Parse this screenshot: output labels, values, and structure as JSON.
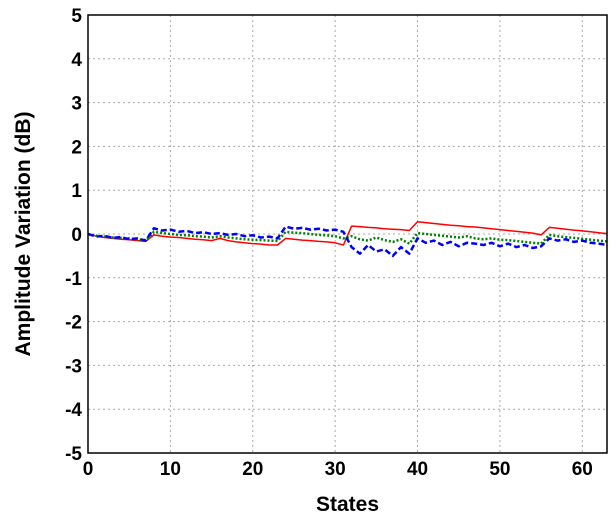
{
  "chart_data": {
    "type": "line",
    "title": "",
    "xlabel": "States",
    "ylabel": "Amplitude Variation (dB)",
    "xlim": [
      0,
      63
    ],
    "ylim": [
      -5,
      5
    ],
    "xticks": [
      0,
      10,
      20,
      30,
      40,
      50,
      60
    ],
    "yticks": [
      5,
      4,
      3,
      2,
      1,
      0,
      -1,
      -2,
      -3,
      -4,
      -5
    ],
    "grid": true,
    "x": [
      0,
      1,
      2,
      3,
      4,
      5,
      6,
      7,
      8,
      9,
      10,
      11,
      12,
      13,
      14,
      15,
      16,
      17,
      18,
      19,
      20,
      21,
      22,
      23,
      24,
      25,
      26,
      27,
      28,
      29,
      30,
      31,
      32,
      33,
      34,
      35,
      36,
      37,
      38,
      39,
      40,
      41,
      42,
      43,
      44,
      45,
      46,
      47,
      48,
      49,
      50,
      51,
      52,
      53,
      54,
      55,
      56,
      57,
      58,
      59,
      60,
      61,
      62,
      63
    ],
    "series": [
      {
        "color": "#ff0000",
        "dash": "solid",
        "values": [
          0.0,
          -0.05,
          -0.08,
          -0.1,
          -0.12,
          -0.13,
          -0.15,
          -0.17,
          -0.02,
          -0.05,
          -0.07,
          -0.08,
          -0.1,
          -0.12,
          -0.13,
          -0.15,
          -0.1,
          -0.15,
          -0.18,
          -0.2,
          -0.22,
          -0.23,
          -0.25,
          -0.25,
          -0.1,
          -0.12,
          -0.14,
          -0.15,
          -0.17,
          -0.18,
          -0.2,
          -0.25,
          0.18,
          0.17,
          0.15,
          0.14,
          0.12,
          0.11,
          0.1,
          0.08,
          0.28,
          0.26,
          0.24,
          0.22,
          0.2,
          0.19,
          0.17,
          0.16,
          0.14,
          0.12,
          0.1,
          0.08,
          0.06,
          0.04,
          0.02,
          -0.02,
          0.15,
          0.13,
          0.11,
          0.09,
          0.07,
          0.05,
          0.03,
          0.01
        ]
      },
      {
        "color": "#008000",
        "dash": "dotted",
        "values": [
          0.0,
          -0.04,
          -0.06,
          -0.08,
          -0.09,
          -0.1,
          -0.12,
          -0.14,
          0.05,
          0.02,
          0.0,
          -0.02,
          -0.03,
          -0.05,
          -0.06,
          -0.08,
          -0.05,
          -0.08,
          -0.1,
          -0.12,
          -0.13,
          -0.14,
          -0.15,
          -0.16,
          0.05,
          0.03,
          0.02,
          0.0,
          -0.02,
          -0.03,
          -0.05,
          -0.1,
          -0.05,
          -0.12,
          -0.15,
          -0.08,
          -0.14,
          -0.18,
          -0.12,
          -0.22,
          0.02,
          0.0,
          -0.02,
          -0.04,
          -0.06,
          -0.08,
          -0.05,
          -0.1,
          -0.12,
          -0.1,
          -0.13,
          -0.14,
          -0.16,
          -0.18,
          -0.2,
          -0.22,
          -0.02,
          -0.05,
          -0.07,
          -0.09,
          -0.11,
          -0.13,
          -0.15,
          -0.17
        ]
      },
      {
        "color": "#0000ff",
        "dash": "dashed",
        "values": [
          0.0,
          -0.06,
          -0.04,
          -0.09,
          -0.07,
          -0.12,
          -0.1,
          -0.15,
          0.13,
          0.08,
          0.1,
          0.05,
          0.07,
          0.02,
          0.04,
          0.0,
          0.02,
          -0.02,
          0.0,
          -0.05,
          -0.03,
          -0.08,
          -0.06,
          -0.1,
          0.17,
          0.12,
          0.14,
          0.1,
          0.12,
          0.08,
          0.1,
          0.05,
          -0.3,
          -0.45,
          -0.25,
          -0.4,
          -0.35,
          -0.5,
          -0.3,
          -0.45,
          -0.1,
          -0.2,
          -0.15,
          -0.25,
          -0.18,
          -0.28,
          -0.2,
          -0.22,
          -0.25,
          -0.2,
          -0.28,
          -0.22,
          -0.3,
          -0.25,
          -0.32,
          -0.28,
          -0.1,
          -0.15,
          -0.12,
          -0.18,
          -0.15,
          -0.2,
          -0.22,
          -0.25
        ]
      }
    ]
  }
}
